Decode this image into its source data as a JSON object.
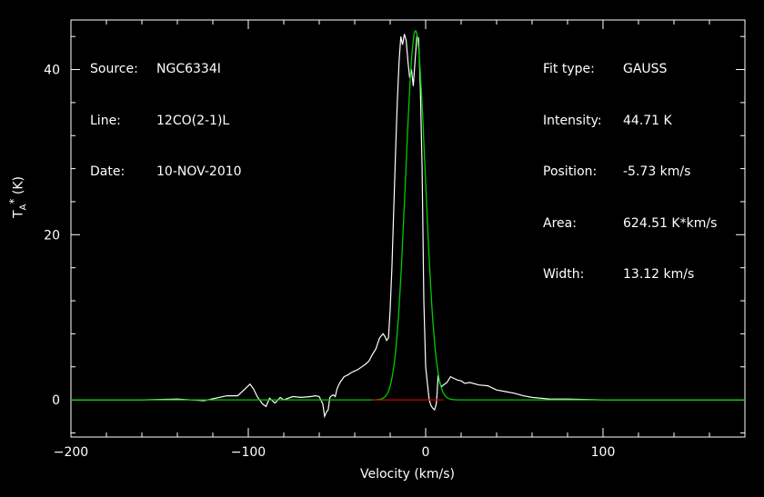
{
  "header_left": {
    "source_label": "Source:",
    "source": "NGC6334I",
    "line_label": "Line:",
    "line": "12CO(2-1)L",
    "date_label": "Date:",
    "date": "10-NOV-2010"
  },
  "fit_info": {
    "fit_type_label": "Fit type:",
    "fit_type": "GAUSS",
    "intensity_label": "Intensity:",
    "intensity": "44.71 K",
    "position_label": "Position:",
    "position": "-5.73 km/s",
    "area_label": "Area:",
    "area": "624.51 K*km/s",
    "width_label": "Width:",
    "width": "13.12 km/s"
  },
  "colors": {
    "background": "#000000",
    "axes": "#ffffff",
    "spectrum": "#ffffff",
    "fit": "#00cc00",
    "baseline": "#cc0000"
  },
  "chart_data": {
    "type": "line",
    "xlabel": "Velocity (km/s)",
    "ylabel_main": "T",
    "ylabel_sub": "A",
    "ylabel_sup": "*",
    "ylabel_unit": "(K)",
    "xlim": [
      -200,
      180
    ],
    "ylim": [
      -4.5,
      46
    ],
    "x_ticks": [
      -200,
      -100,
      0,
      100
    ],
    "x_tick_labels": [
      "−200",
      "−100",
      "0",
      "100"
    ],
    "y_ticks": [
      0,
      20,
      40
    ],
    "y_tick_labels": [
      "0",
      "20",
      "40"
    ],
    "series": [
      {
        "role": "spectrum",
        "x": [
          -200,
          -180,
          -160,
          -140,
          -125,
          -112,
          -106,
          -102,
          -99,
          -97,
          -95,
          -92,
          -90,
          -88,
          -85,
          -82,
          -80,
          -75,
          -70,
          -65,
          -62,
          -60,
          -58,
          -57,
          -56,
          -55,
          -54,
          -53,
          -52,
          -51,
          -50,
          -49,
          -48,
          -46,
          -44,
          -42,
          -40,
          -38,
          -36,
          -34,
          -32,
          -30,
          -28,
          -26,
          -24,
          -23,
          -22,
          -21,
          -20,
          -19,
          -18,
          -17,
          -16,
          -15,
          -14,
          -13,
          -12,
          -11,
          -10,
          -9,
          -8,
          -7,
          -6,
          -5,
          -4,
          -3,
          -2,
          -1,
          0,
          1,
          2,
          3,
          4,
          5,
          6,
          6.5,
          7,
          8,
          9,
          10,
          12,
          14,
          16,
          18,
          20,
          22,
          25,
          30,
          35,
          40,
          45,
          50,
          55,
          60,
          70,
          80,
          100,
          120,
          140,
          160,
          180
        ],
        "values": [
          0,
          0,
          0,
          0.1,
          -0.1,
          0.5,
          0.5,
          1.3,
          1.9,
          1.3,
          0.4,
          -0.5,
          -0.8,
          0.2,
          -0.4,
          0.3,
          0,
          0.4,
          0.3,
          0.4,
          0.5,
          0.4,
          -0.5,
          -2,
          -1.5,
          -1.2,
          0.3,
          0.5,
          0.6,
          0.4,
          1.3,
          1.8,
          2.2,
          2.8,
          3.0,
          3.3,
          3.5,
          3.7,
          4.0,
          4.3,
          4.7,
          5.5,
          6.2,
          7.5,
          8.0,
          7.7,
          7.2,
          7.5,
          11,
          16,
          23,
          30,
          36,
          41,
          44,
          43,
          44.3,
          43.5,
          41,
          39,
          40,
          38,
          41,
          44,
          43.8,
          38,
          28,
          12,
          4,
          2,
          0,
          -0.7,
          -1,
          -1.2,
          -0.5,
          1,
          3,
          2,
          1.6,
          1.8,
          2.1,
          2.8,
          2.6,
          2.4,
          2.3,
          2.0,
          2.1,
          1.8,
          1.7,
          1.2,
          1.0,
          0.8,
          0.5,
          0.3,
          0.1,
          0.1,
          0,
          0,
          0,
          0,
          0
        ]
      },
      {
        "role": "gaussian-fit",
        "amplitude": 44.71,
        "center": -5.73,
        "fwhm": 13.12
      },
      {
        "role": "baseline",
        "x": [
          -30,
          10
        ],
        "values": [
          0,
          0
        ]
      }
    ]
  }
}
